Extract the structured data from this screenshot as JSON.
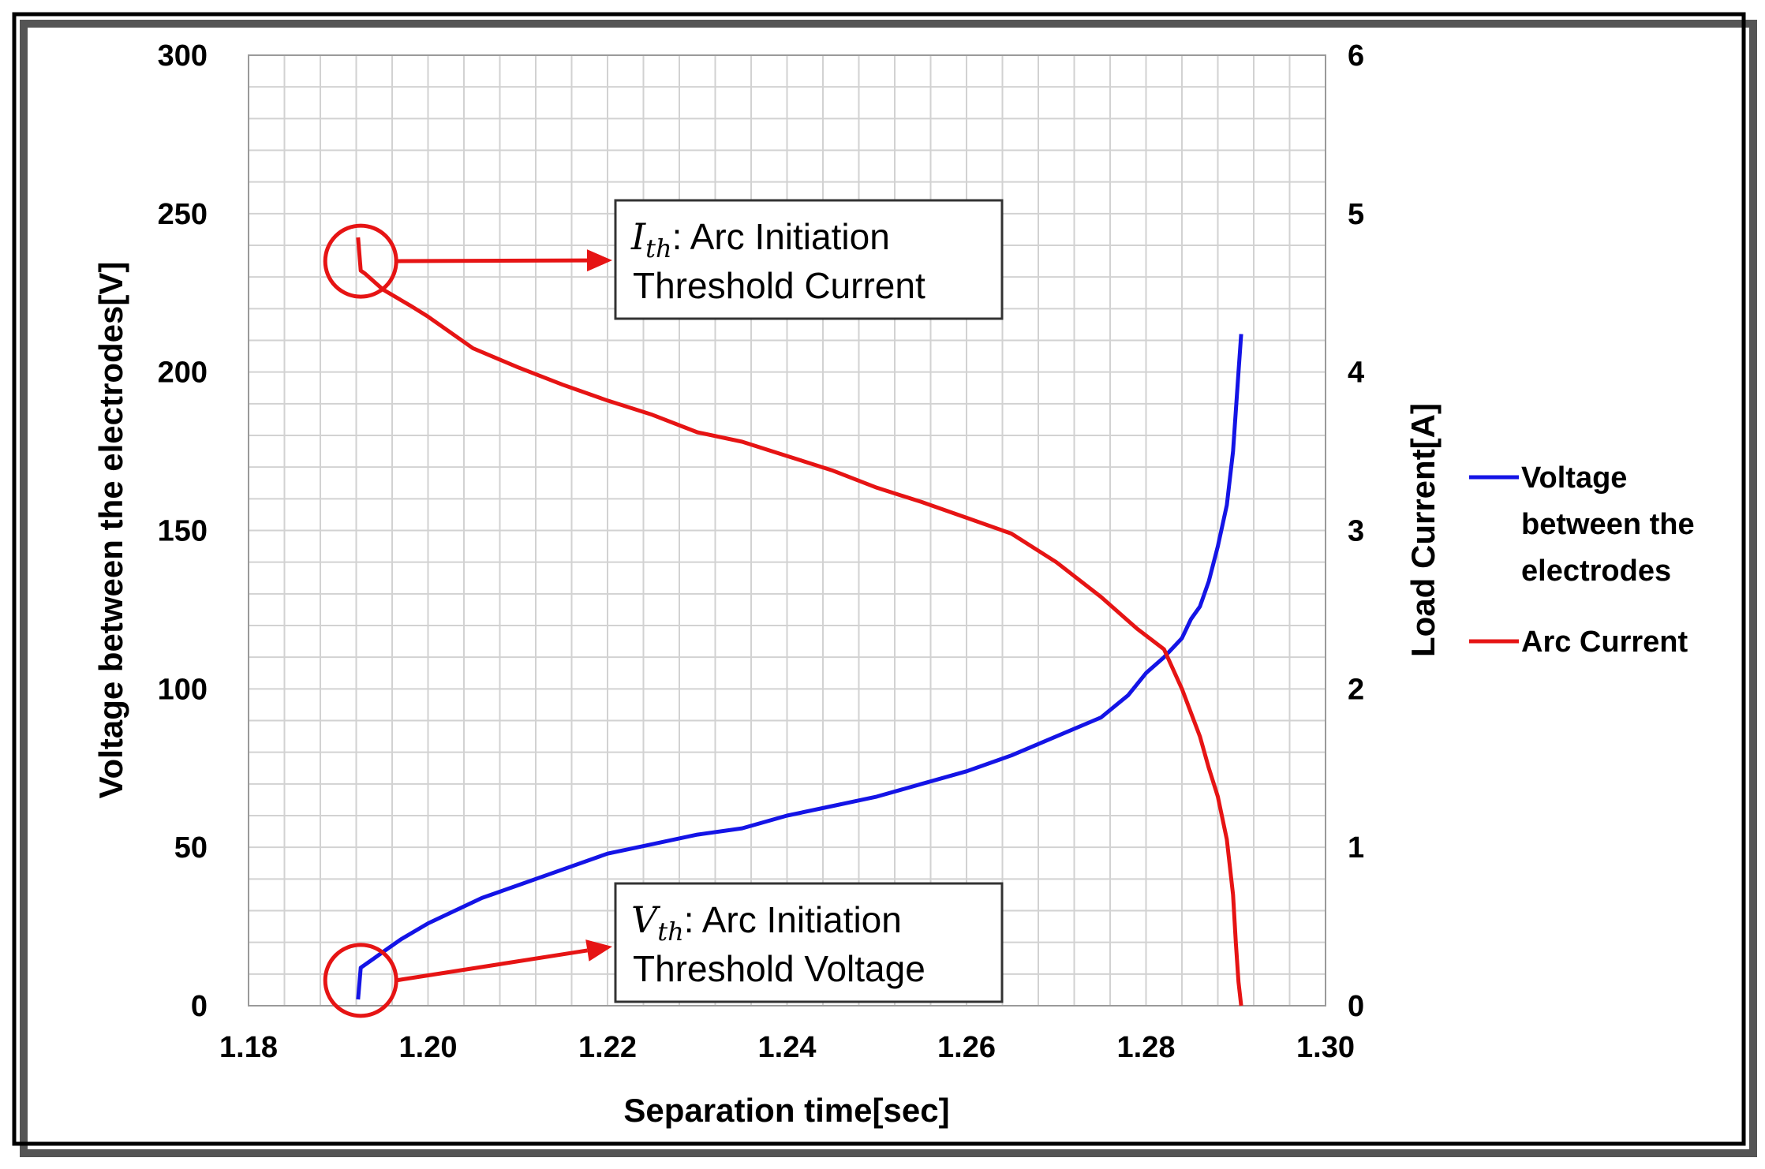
{
  "chart_data": {
    "type": "line",
    "xlabel": "Separation time[sec]",
    "ylabel_left": "Voltage between the electrodes[V]",
    "ylabel_right": "Load Current[A]",
    "xlim": [
      1.18,
      1.3
    ],
    "ylim_left": [
      0,
      300
    ],
    "ylim_right": [
      0,
      6
    ],
    "grid": true,
    "legend_position": "right",
    "x_ticks": [
      "1.18",
      "1.20",
      "1.22",
      "1.24",
      "1.26",
      "1.28",
      "1.30"
    ],
    "y_ticks_left": [
      "0",
      "50",
      "100",
      "150",
      "200",
      "250",
      "300"
    ],
    "y_ticks_right": [
      "0",
      "1",
      "2",
      "3",
      "4",
      "5",
      "6"
    ],
    "colors": {
      "voltage": "#1414e6",
      "current": "#e61414",
      "annotation": "#e61414"
    },
    "series": [
      {
        "name": "Voltage between the electrodes",
        "axis": "left",
        "legend_lines": [
          "Voltage",
          "between the",
          "electrodes"
        ],
        "x": [
          1.1922,
          1.1925,
          1.193,
          1.194,
          1.195,
          1.197,
          1.2,
          1.203,
          1.206,
          1.21,
          1.215,
          1.22,
          1.225,
          1.23,
          1.235,
          1.24,
          1.245,
          1.25,
          1.255,
          1.26,
          1.265,
          1.27,
          1.275,
          1.278,
          1.28,
          1.282,
          1.284,
          1.285,
          1.286,
          1.287,
          1.288,
          1.289,
          1.2897,
          1.2903,
          1.2906
        ],
        "values": [
          2,
          12,
          13,
          15,
          17,
          21,
          26,
          30,
          34,
          38,
          43,
          48,
          51,
          54,
          56,
          60,
          63,
          66,
          70,
          74,
          79,
          85,
          91,
          98,
          105,
          110,
          116,
          122,
          126,
          134,
          145,
          158,
          175,
          200,
          212
        ]
      },
      {
        "name": "Arc Current",
        "axis": "right",
        "legend_lines": [
          "Arc Current"
        ],
        "x": [
          1.1922,
          1.1925,
          1.193,
          1.195,
          1.198,
          1.2,
          1.205,
          1.21,
          1.215,
          1.22,
          1.225,
          1.23,
          1.235,
          1.24,
          1.245,
          1.25,
          1.255,
          1.26,
          1.265,
          1.27,
          1.275,
          1.279,
          1.282,
          1.284,
          1.286,
          1.287,
          1.288,
          1.289,
          1.2897,
          1.29,
          1.2903,
          1.2906
        ],
        "values": [
          4.85,
          4.64,
          4.62,
          4.52,
          4.42,
          4.35,
          4.15,
          4.03,
          3.92,
          3.82,
          3.73,
          3.62,
          3.56,
          3.47,
          3.38,
          3.27,
          3.18,
          3.08,
          2.98,
          2.8,
          2.58,
          2.38,
          2.25,
          2.0,
          1.7,
          1.5,
          1.32,
          1.05,
          0.7,
          0.4,
          0.15,
          0.0
        ]
      }
    ],
    "annotations": [
      {
        "id": "current",
        "symbol": "I",
        "subscript": "th",
        "line1": ": Arc Initiation",
        "line2": "Threshold Current",
        "marker_x": 1.1925,
        "marker_value": 4.7,
        "marker_axis": "right"
      },
      {
        "id": "voltage",
        "symbol": "V",
        "subscript": "th",
        "line1": ": Arc Initiation",
        "line2": "Threshold Voltage",
        "marker_x": 1.1925,
        "marker_value": 8,
        "marker_axis": "left"
      }
    ]
  }
}
